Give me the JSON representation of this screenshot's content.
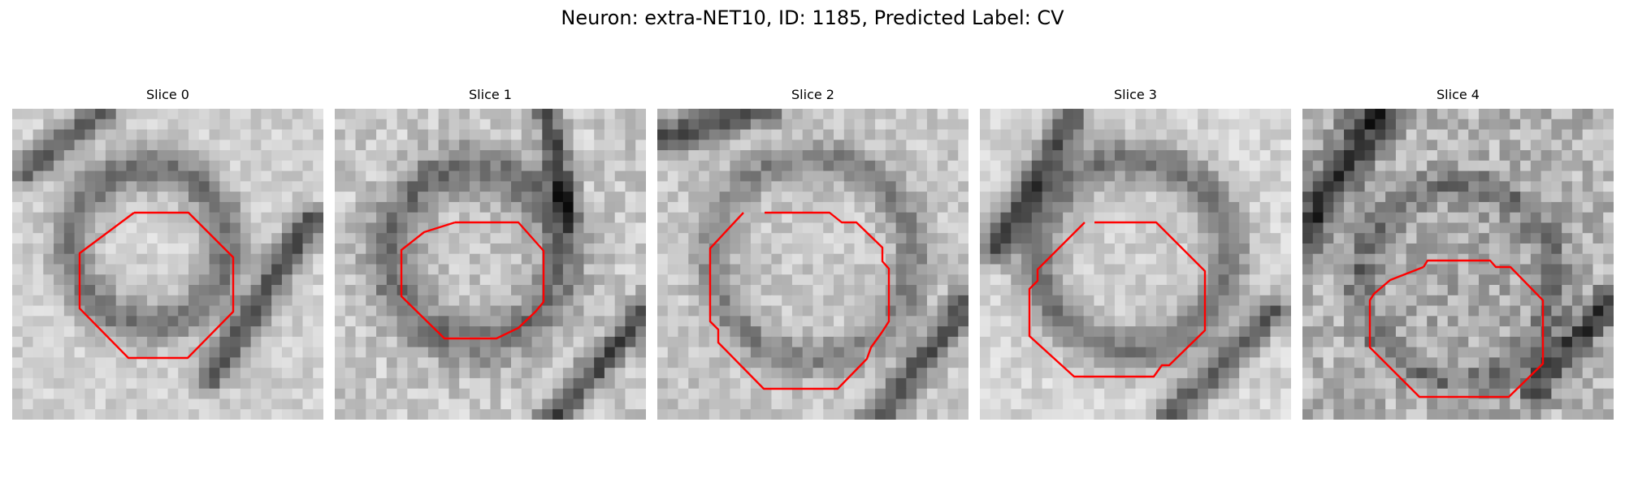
{
  "figure": {
    "title": "Neuron: extra-NET10, ID: 1185, Predicted Label: CV"
  },
  "panels": [
    {
      "title": "Slice 0"
    },
    {
      "title": "Slice 1"
    },
    {
      "title": "Slice 2"
    },
    {
      "title": "Slice 3"
    },
    {
      "title": "Slice 4"
    }
  ],
  "colors": {
    "contour": "#ff0000",
    "background": "#ffffff"
  }
}
